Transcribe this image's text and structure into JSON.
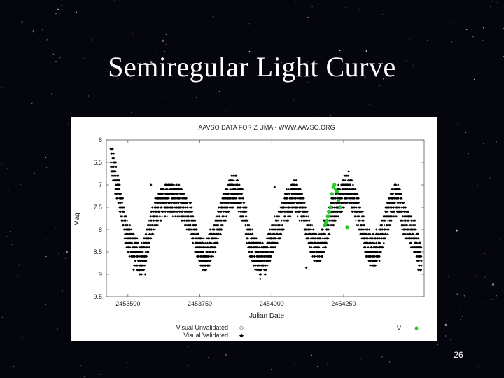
{
  "slide": {
    "title": "Semiregular Light Curve",
    "number": "26"
  },
  "colors": {
    "background": "#05060d",
    "unvalidated": "#9a9a9a",
    "validated": "#000000",
    "v_band": "#22cc22"
  },
  "chart_data": {
    "type": "scatter",
    "title": "AAVSO DATA FOR Z UMA - WWW.AAVSO.ORG",
    "xlabel": "Julian Date",
    "ylabel": "Mag",
    "xlim": [
      2453425,
      2454530
    ],
    "ylim": [
      9.5,
      6.0
    ],
    "y_inverted": true,
    "x_ticks": [
      2453500,
      2453750,
      2454000,
      2454250
    ],
    "x_tick_labels": [
      "2453500",
      "2453750",
      "2454000",
      "2454250"
    ],
    "y_ticks": [
      6,
      6.5,
      7,
      7.5,
      8,
      8.5,
      9,
      9.5
    ],
    "y_tick_labels": [
      "6",
      "6.5",
      "7",
      "7.5",
      "8",
      "8.5",
      "9",
      "9.5"
    ],
    "grid": false,
    "legend": {
      "entries": [
        {
          "label": "Visual Unvalidated",
          "marker": "open-diamond"
        },
        {
          "label": "Visual Validated",
          "marker": "filled-diamond"
        },
        {
          "label": "V",
          "marker": "green-point"
        }
      ],
      "placement": "bottom"
    },
    "series": [
      {
        "name": "Visual Validated",
        "color": "#000000",
        "trend_x": [
          2453440,
          2453470,
          2453490,
          2453525,
          2453550,
          2453570,
          2453590,
          2453605,
          2453640,
          2453680,
          2453720,
          2453745,
          2453770,
          2453800,
          2453830,
          2453855,
          2453875,
          2453905,
          2453925,
          2453950,
          2453975,
          2454000,
          2454025,
          2454050,
          2454080,
          2454110,
          2454135,
          2454160,
          2454185,
          2454210,
          2454240,
          2454265,
          2454285,
          2454310,
          2454330,
          2454350,
          2454375,
          2454400,
          2454420,
          2454440,
          2454460,
          2454480,
          2454500,
          2454520
        ],
        "trend_y": [
          6.4,
          7.2,
          8.0,
          8.5,
          8.7,
          8.2,
          7.7,
          7.5,
          7.3,
          7.4,
          7.8,
          8.4,
          8.6,
          8.2,
          7.6,
          7.2,
          7.1,
          7.6,
          8.3,
          8.6,
          8.7,
          8.2,
          7.9,
          7.5,
          7.2,
          7.6,
          8.2,
          8.5,
          8.1,
          7.6,
          7.3,
          7.0,
          7.3,
          7.8,
          8.3,
          8.5,
          8.3,
          7.8,
          7.4,
          7.3,
          7.8,
          8.0,
          8.2,
          8.7
        ],
        "scatter_mag": 0.35,
        "outliers": [
          {
            "x": 2453447,
            "y": 6.2
          },
          {
            "x": 2453520,
            "y": 8.9
          },
          {
            "x": 2453560,
            "y": 9.0
          },
          {
            "x": 2453580,
            "y": 7.0
          },
          {
            "x": 2453960,
            "y": 9.1
          },
          {
            "x": 2454010,
            "y": 7.05
          },
          {
            "x": 2454120,
            "y": 8.85
          },
          {
            "x": 2454510,
            "y": 8.9
          },
          {
            "x": 2454515,
            "y": 8.5
          }
        ]
      },
      {
        "name": "V",
        "color": "#22cc22",
        "x": [
          2454185,
          2454188,
          2454192,
          2454195,
          2454200,
          2454205,
          2454210,
          2454214,
          2454218,
          2454222,
          2454227,
          2454232,
          2454238,
          2454262
        ],
        "y": [
          7.9,
          7.85,
          7.8,
          7.7,
          7.6,
          7.5,
          7.2,
          7.05,
          7.0,
          7.1,
          7.15,
          7.35,
          7.5,
          7.95
        ]
      }
    ]
  }
}
